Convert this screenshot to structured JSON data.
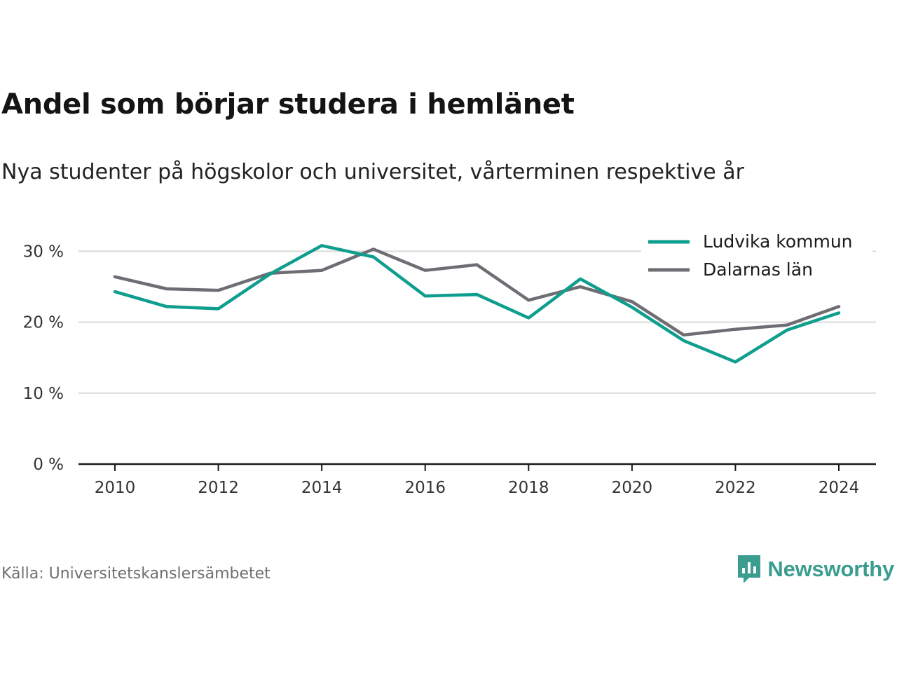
{
  "header": {
    "title": "Andel som börjar studera i hemlänet",
    "subtitle": "Nya studenter på högskolor och universitet, vårterminen respektive år"
  },
  "footer": {
    "source": "Källa: Universitetskanslersämbetet",
    "brand": "Newsworthy",
    "brand_color": "#3a9d8f"
  },
  "chart_data": {
    "type": "line",
    "title": "Andel som börjar studera i hemlänet",
    "subtitle": "Nya studenter på högskolor och universitet, vårterminen respektive år",
    "xlabel": "",
    "ylabel": "",
    "x": [
      2010,
      2011,
      2012,
      2013,
      2014,
      2015,
      2016,
      2017,
      2018,
      2019,
      2020,
      2021,
      2022,
      2023,
      2024
    ],
    "x_ticks": [
      "2010",
      "2012",
      "2014",
      "2016",
      "2018",
      "2020",
      "2022",
      "2024"
    ],
    "y_ticks": [
      "0 %",
      "10 %",
      "20 %",
      "30 %"
    ],
    "ylim": [
      0,
      30
    ],
    "grid": true,
    "legend_position": "top-right",
    "series": [
      {
        "name": "Ludvika kommun",
        "color": "#0d9e8e",
        "values": [
          24.3,
          22.2,
          21.9,
          26.8,
          30.8,
          29.2,
          23.7,
          23.9,
          20.6,
          26.1,
          22.1,
          17.4,
          14.4,
          18.9,
          21.3
        ]
      },
      {
        "name": "Dalarnas län",
        "color": "#6e6d74",
        "values": [
          26.4,
          24.7,
          24.5,
          26.9,
          27.3,
          30.3,
          27.3,
          28.1,
          23.1,
          25.0,
          22.9,
          18.2,
          19.0,
          19.6,
          22.2
        ]
      }
    ]
  }
}
